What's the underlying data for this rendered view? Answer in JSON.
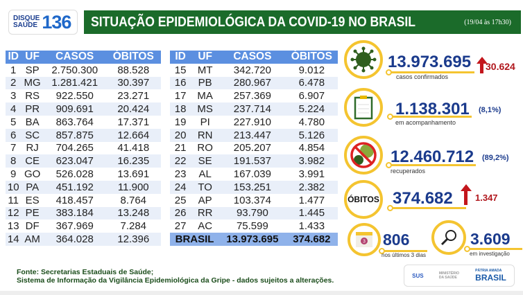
{
  "header": {
    "logo_small_1": "DISQUE",
    "logo_small_2": "SAÚDE",
    "logo_number": "136",
    "title": "SITUAÇÃO EPIDEMIOLÓGICA DA COVID-19 NO BRASIL",
    "date": "(19/04 às 17h30)"
  },
  "table": {
    "headers": [
      "ID",
      "UF",
      "CASOS",
      "ÓBITOS"
    ],
    "left": [
      [
        "1",
        "SP",
        "2.750.300",
        "88.528"
      ],
      [
        "2",
        "MG",
        "1.281.421",
        "30.397"
      ],
      [
        "3",
        "RS",
        "922.550",
        "23.271"
      ],
      [
        "4",
        "PR",
        "909.691",
        "20.424"
      ],
      [
        "5",
        "BA",
        "863.764",
        "17.371"
      ],
      [
        "6",
        "SC",
        "857.875",
        "12.664"
      ],
      [
        "7",
        "RJ",
        "704.265",
        "41.418"
      ],
      [
        "8",
        "CE",
        "623.047",
        "16.235"
      ],
      [
        "9",
        "GO",
        "526.028",
        "13.691"
      ],
      [
        "10",
        "PA",
        "451.192",
        "11.900"
      ],
      [
        "11",
        "ES",
        "418.457",
        "8.764"
      ],
      [
        "12",
        "PE",
        "383.184",
        "13.248"
      ],
      [
        "13",
        "DF",
        "367.969",
        "7.284"
      ],
      [
        "14",
        "AM",
        "364.028",
        "12.396"
      ]
    ],
    "right": [
      [
        "15",
        "MT",
        "342.720",
        "9.012"
      ],
      [
        "16",
        "PB",
        "280.967",
        "6.478"
      ],
      [
        "17",
        "MA",
        "257.369",
        "6.907"
      ],
      [
        "18",
        "MS",
        "237.714",
        "5.224"
      ],
      [
        "19",
        "PI",
        "227.910",
        "4.780"
      ],
      [
        "20",
        "RN",
        "213.447",
        "5.126"
      ],
      [
        "21",
        "RO",
        "205.207",
        "4.854"
      ],
      [
        "22",
        "SE",
        "191.537",
        "3.982"
      ],
      [
        "23",
        "AL",
        "167.039",
        "3.991"
      ],
      [
        "24",
        "TO",
        "153.251",
        "2.382"
      ],
      [
        "25",
        "AP",
        "103.374",
        "1.477"
      ],
      [
        "26",
        "RR",
        "93.790",
        "1.445"
      ],
      [
        "27",
        "AC",
        "75.599",
        "1.433"
      ]
    ],
    "total": {
      "label": "BRASIL",
      "casos": "13.973.695",
      "obitos": "374.682"
    }
  },
  "stats": {
    "confirmed": {
      "value": "13.973.695",
      "label": "casos confirmados",
      "increase": "30.624",
      "icon": "virus-icon"
    },
    "monitoring": {
      "value": "1.138.301",
      "pct": "(8,1%)",
      "label": "em acompanhamento",
      "icon": "clipboard-icon"
    },
    "recovered": {
      "value": "12.460.712",
      "pct": "(89,2%)",
      "label": "recuperados",
      "icon": "no-virus-icon"
    },
    "deaths": {
      "badge": "ÓBITOS",
      "value": "374.682",
      "increase": "1.347"
    },
    "recent": {
      "value": "806",
      "label": "nos últimos 3 dias",
      "calendar_number": "3",
      "icon": "calendar-icon"
    },
    "investigation": {
      "value": "3.609",
      "label": "em investigação",
      "icon": "magnifier-icon"
    }
  },
  "footer": {
    "line1": "Fonte: Secretarias Estaduais de Saúde;",
    "line2": "Sistema de Informação da Vigilância Epidemiológica da Gripe - dados sujeitos a alterações.",
    "sus": "SUS",
    "ministry": "MINISTÉRIO DA SAÚDE",
    "brasil_top": "PÁTRIA AMADA",
    "brasil": "BRASIL"
  },
  "colors": {
    "green": "#1b6b2a",
    "blue_header": "#5b8fe0",
    "navy": "#1a3a8c",
    "yellow": "#f4c430",
    "red": "#c3161c"
  }
}
